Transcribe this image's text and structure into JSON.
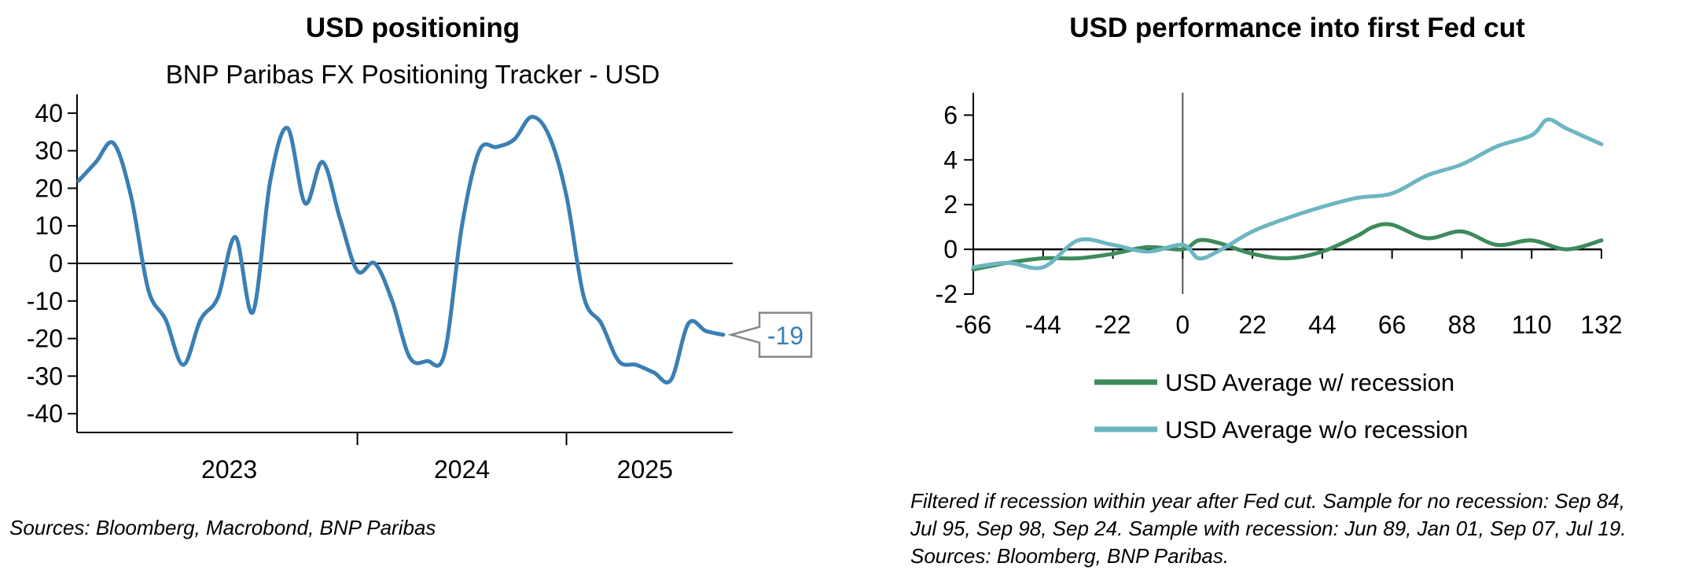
{
  "left": {
    "title": "USD positioning",
    "source": "Sources: Bloomberg, Macrobond, BNP Paribas"
  },
  "right": {
    "title": "USD performance into first Fed cut",
    "note_lines": [
      "Filtered if recession within year after Fed cut. Sample for no recession: Sep 84,",
      "Jul 95, Sep 98, Sep 24. Sample with recession: Jun 89, Jan 01, Sep 07, Jul 19.",
      "Sources: Bloomberg, BNP Paribas."
    ]
  },
  "chart_data": [
    {
      "type": "line",
      "title": "BNP Paribas FX Positioning Tracker - USD",
      "x_labels": [
        "2023",
        "2024",
        "2025"
      ],
      "ylim": [
        -45,
        45
      ],
      "yticks": [
        40,
        30,
        20,
        10,
        0,
        -10,
        -20,
        -30,
        -40
      ],
      "last_value_label": "-19",
      "colors": {
        "line": "#3a7fb4"
      },
      "series": [
        {
          "x": [
            "2022-09",
            "2022-10",
            "2022-11",
            "2022-12",
            "2023-01",
            "2023-02",
            "2023-03",
            "2023-04",
            "2023-05",
            "2023-06",
            "2023-07",
            "2023-08",
            "2023-09",
            "2023-10",
            "2023-11",
            "2023-12",
            "2024-01",
            "2024-02",
            "2024-03",
            "2024-04",
            "2024-05",
            "2024-06",
            "2024-07",
            "2024-08",
            "2024-09",
            "2024-10",
            "2024-11",
            "2024-12",
            "2025-01",
            "2025-02",
            "2025-03",
            "2025-04",
            "2025-05",
            "2025-06",
            "2025-07",
            "2025-08",
            "2025-09",
            "2025-10"
          ],
          "values": [
            22,
            27,
            32,
            18,
            -7,
            -15,
            -27,
            -15,
            -9,
            7,
            -13,
            22,
            36,
            16,
            27,
            12,
            -2,
            0,
            -10,
            -25,
            -26,
            -24,
            10,
            30,
            31,
            33,
            39,
            34,
            18,
            -9,
            -16,
            -26,
            -27,
            -29,
            -31,
            -16,
            -18,
            -19
          ]
        }
      ]
    },
    {
      "type": "line",
      "title": "",
      "xticks": [
        -66,
        -44,
        -22,
        0,
        22,
        44,
        66,
        88,
        110,
        132
      ],
      "xlim": [
        -66,
        132
      ],
      "ylim": [
        -2,
        7
      ],
      "yticks": [
        6,
        4,
        2,
        0,
        -2
      ],
      "legend": "bottom",
      "colors": {
        "recession": "#3d8b5c",
        "no_recession": "#6cb6c2"
      },
      "series": [
        {
          "name": "USD Average w/ recession",
          "x": [
            -66,
            -55,
            -44,
            -33,
            -22,
            -11,
            0,
            5,
            11,
            22,
            33,
            44,
            55,
            60,
            66,
            77,
            88,
            99,
            110,
            121,
            132
          ],
          "values": [
            -0.9,
            -0.6,
            -0.4,
            -0.4,
            -0.2,
            0.1,
            0.0,
            0.4,
            0.3,
            -0.2,
            -0.4,
            -0.1,
            0.6,
            1.0,
            1.1,
            0.5,
            0.8,
            0.2,
            0.4,
            0.0,
            0.4
          ]
        },
        {
          "name": "USD Average w/o recession",
          "x": [
            -66,
            -55,
            -44,
            -33,
            -22,
            -11,
            0,
            5,
            11,
            22,
            33,
            44,
            55,
            66,
            77,
            88,
            99,
            110,
            115,
            121,
            132
          ],
          "values": [
            -0.8,
            -0.6,
            -0.8,
            0.4,
            0.2,
            -0.1,
            0.2,
            -0.4,
            -0.1,
            0.8,
            1.4,
            1.9,
            2.3,
            2.5,
            3.3,
            3.8,
            4.6,
            5.1,
            5.8,
            5.4,
            4.7
          ]
        }
      ]
    }
  ]
}
